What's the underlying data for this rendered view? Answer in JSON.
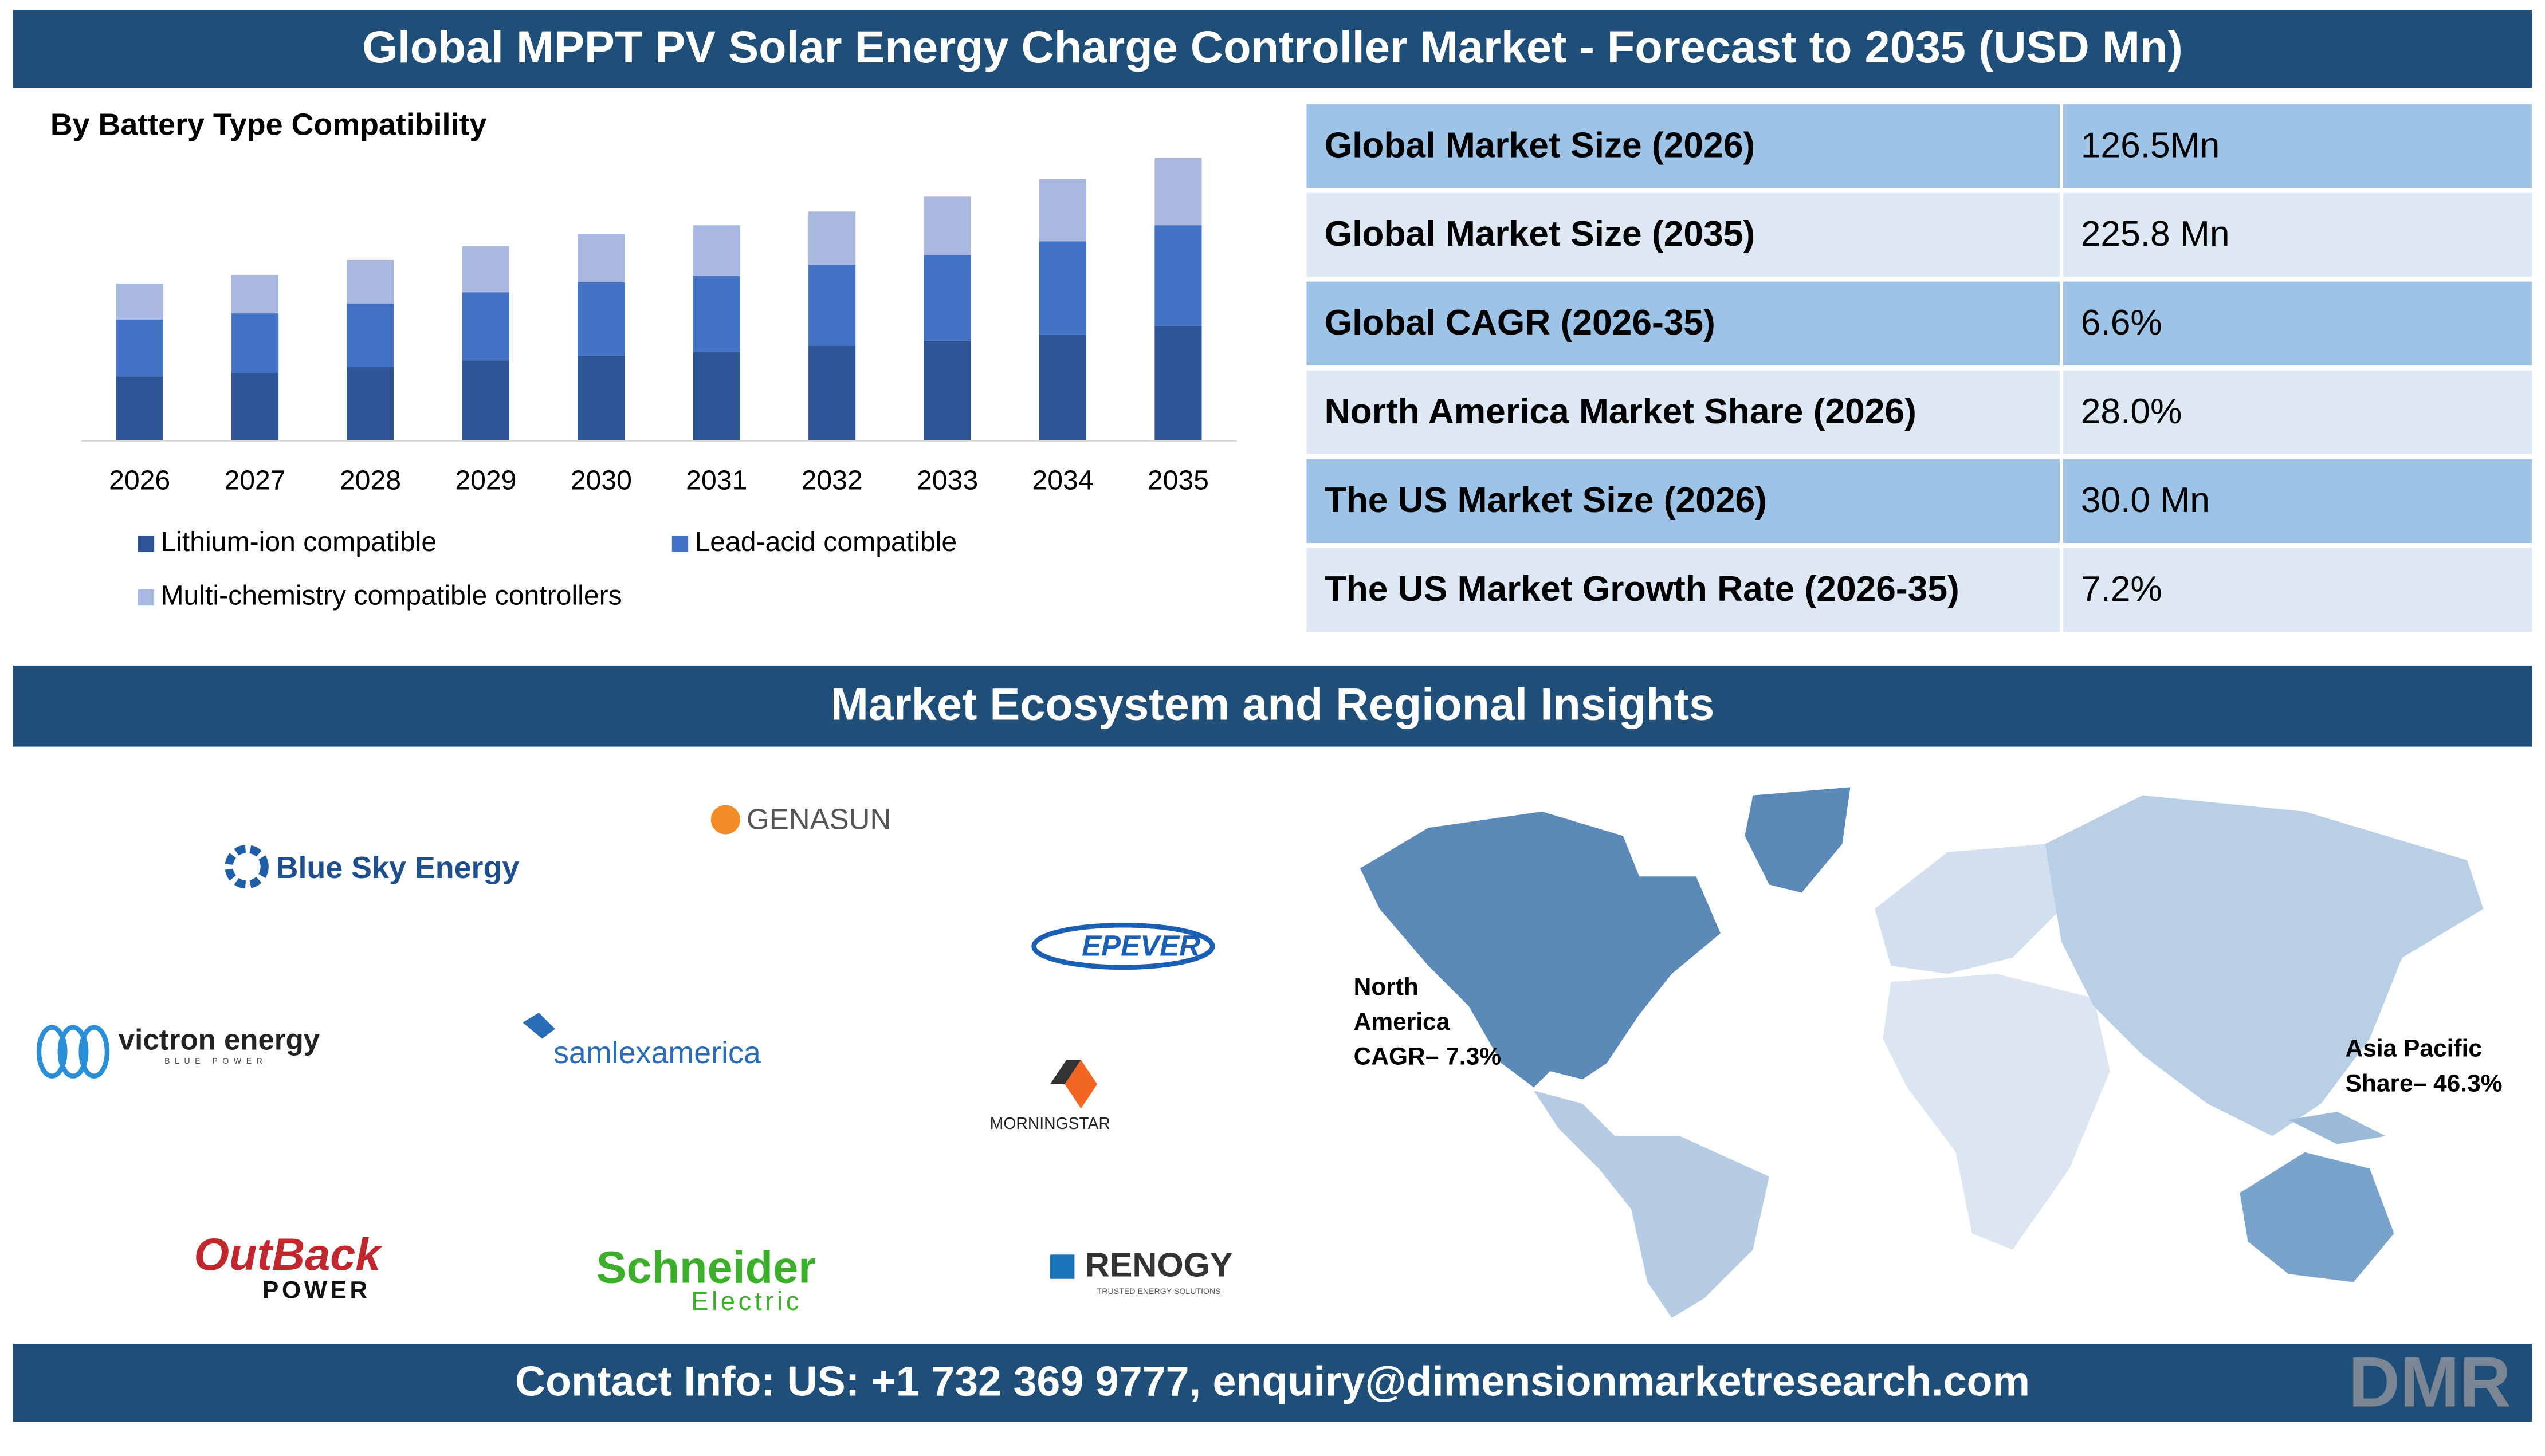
{
  "header": {
    "title": "Global MPPT PV Solar Energy Charge Controller Market - Forecast to 2035 (USD Mn)"
  },
  "chart_data": {
    "type": "bar",
    "stacked": true,
    "subtitle": "By Battery Type Compatibility",
    "categories": [
      "2026",
      "2027",
      "2028",
      "2029",
      "2030",
      "2031",
      "2032",
      "2033",
      "2034",
      "2035"
    ],
    "series": [
      {
        "name": "Lithium-ion compatible",
        "color": "#2f5597",
        "values": [
          51,
          54,
          59,
          64,
          68,
          71,
          76,
          80,
          85,
          92
        ]
      },
      {
        "name": "Lead-acid compatible",
        "color": "#4472c4",
        "values": [
          46,
          48,
          51,
          55,
          59,
          61,
          65,
          69,
          75,
          81
        ]
      },
      {
        "name": "Multi-chemistry compatible controllers",
        "color": "#a9b8e0",
        "values": [
          29,
          31,
          35,
          37,
          39,
          41,
          43,
          47,
          50,
          54
        ]
      }
    ],
    "ylim": [
      0,
      230
    ],
    "legend": "bottom"
  },
  "stats": {
    "rows": [
      [
        "Global Market Size (2026)",
        "126.5Mn"
      ],
      [
        "Global Market Size (2035)",
        "225.8 Mn"
      ],
      [
        "Global CAGR (2026-35)",
        "6.6%"
      ],
      [
        "North America Market Share (2026)",
        "28.0%"
      ],
      [
        "The US Market Size (2026)",
        "30.0 Mn"
      ],
      [
        "The US Market Growth Rate (2026-35)",
        "7.2%"
      ]
    ]
  },
  "ecosystem": {
    "title": "Market Ecosystem and Regional Insights",
    "logos": [
      "Blue Sky Energy",
      "GENASUN",
      "EPEVER",
      "victron energy",
      "BLUE POWER",
      "samlexamerica",
      "MORNINGSTAR",
      "OutBack",
      "POWER",
      "Schneider",
      "Electric",
      "RENOGY",
      "TRUSTED ENERGY SOLUTIONS"
    ],
    "regions": [
      {
        "lines": [
          "North",
          "America",
          "CAGR– 7.3%"
        ]
      },
      {
        "lines": [
          "Asia Pacific",
          "Share– 46.3%"
        ]
      }
    ]
  },
  "footer": {
    "contact": "Contact Info: US: +1 732 369 9777, enquiry@dimensionmarketresearch.com",
    "logo": "DMR"
  }
}
